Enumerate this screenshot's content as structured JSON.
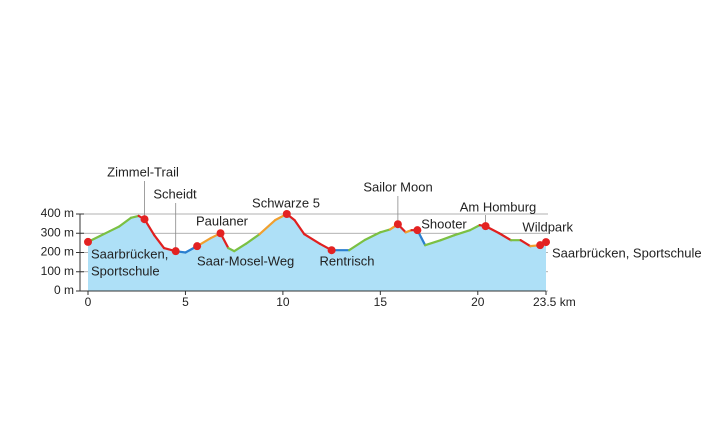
{
  "chart_data": {
    "type": "elevation-profile",
    "x": [
      0,
      0.6,
      1.1,
      1.6,
      2.2,
      2.6,
      2.9,
      3.4,
      3.9,
      4.5,
      5.0,
      5.6,
      6.3,
      6.8,
      7.2,
      7.5,
      8.1,
      8.8,
      9.6,
      10.2,
      10.6,
      11.1,
      11.9,
      12.5,
      13.4,
      14.2,
      15.0,
      15.5,
      15.9,
      16.3,
      16.6,
      16.9,
      17.3,
      18.1,
      18.8,
      19.6,
      20.1,
      20.4,
      21.1,
      21.7,
      22.2,
      22.7,
      23.2,
      23.5
    ],
    "values": [
      255,
      285,
      310,
      335,
      380,
      390,
      373,
      290,
      223,
      207,
      200,
      233,
      275,
      300,
      223,
      207,
      245,
      295,
      368,
      400,
      368,
      295,
      245,
      212,
      212,
      265,
      305,
      320,
      347,
      305,
      316,
      316,
      238,
      264,
      290,
      316,
      342,
      337,
      300,
      264,
      264,
      233,
      238,
      254
    ],
    "segment_colors": [
      "#7bc043",
      "#7bc043",
      "#7bc043",
      "#7bc043",
      "#7bc043",
      "#e02020",
      "#e02020",
      "#e02020",
      "#e02020",
      "#2a7fd0",
      "#2a7fd0",
      "#f0a030",
      "#f0a030",
      "#e02020",
      "#7bc043",
      "#7bc043",
      "#7bc043",
      "#f0a030",
      "#f0a030",
      "#e02020",
      "#e02020",
      "#e02020",
      "#e02020",
      "#2a7fd0",
      "#7bc043",
      "#7bc043",
      "#7bc043",
      "#f0a030",
      "#e02020",
      "#f0a030",
      "#e02020",
      "#2a7fd0",
      "#7bc043",
      "#7bc043",
      "#7bc043",
      "#7bc043",
      "#e02020",
      "#e02020",
      "#e02020",
      "#7bc043",
      "#e02020",
      "#f0a030",
      "#e02020"
    ],
    "area_color": "#aee0f7",
    "marker_color": "#e32222",
    "xlim": [
      0,
      23.5
    ],
    "ylim": [
      0,
      400
    ],
    "xticks": [
      0,
      5,
      10,
      15,
      20,
      {
        "value": 23.5,
        "label": "23.5 km"
      }
    ],
    "yticks": [
      {
        "value": 0,
        "label": "0 m"
      },
      {
        "value": 100,
        "label": "100 m"
      },
      {
        "value": 200,
        "label": "200 m"
      },
      {
        "value": 300,
        "label": "300 m"
      },
      {
        "value": 400,
        "label": "400 m"
      }
    ],
    "grid": true,
    "waypoints": [
      {
        "label": [
          "Saarbrücken,",
          "Sportschule"
        ],
        "x": 0,
        "y": 255
      },
      {
        "label": [
          "Zimmel-Trail"
        ],
        "x": 2.9,
        "y": 373
      },
      {
        "label": [
          "Scheidt"
        ],
        "x": 4.5,
        "y": 207
      },
      {
        "label": [
          "Saar-Mosel-Weg"
        ],
        "x": 5.6,
        "y": 233
      },
      {
        "label": [
          "Paulaner"
        ],
        "x": 6.8,
        "y": 300
      },
      {
        "label": [
          "Schwarze 5"
        ],
        "x": 10.2,
        "y": 400
      },
      {
        "label": [
          "Rentrisch"
        ],
        "x": 12.5,
        "y": 212
      },
      {
        "label": [
          "Sailor Moon"
        ],
        "x": 15.9,
        "y": 347
      },
      {
        "label": [
          "Shooter"
        ],
        "x": 16.9,
        "y": 316
      },
      {
        "label": [
          "Am Homburg"
        ],
        "x": 20.4,
        "y": 337
      },
      {
        "label": [
          "Wildpark"
        ],
        "x": 23.2,
        "y": 238
      },
      {
        "label": [
          "Saarbrücken, Sportschule"
        ],
        "x": 23.5,
        "y": 254
      }
    ]
  }
}
